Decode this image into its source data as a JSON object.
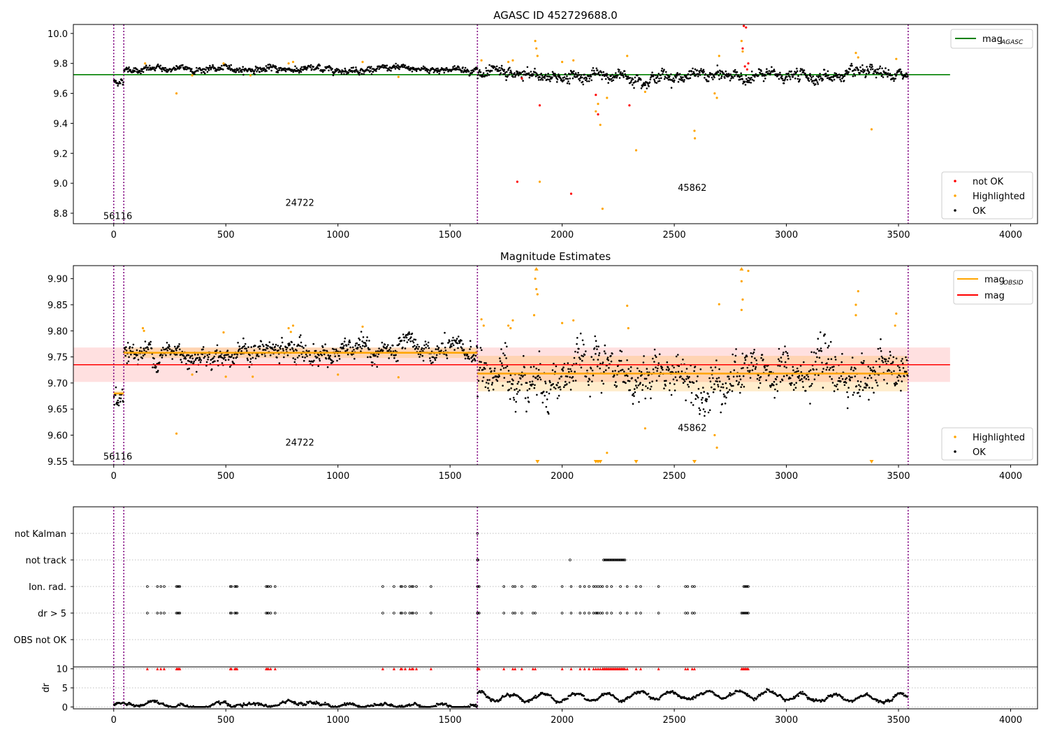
{
  "chart_data": [
    {
      "type": "scatter",
      "title": "AGASC ID 452729688.0",
      "xlabel": "",
      "ylabel": "",
      "xlim": [
        -180,
        4120
      ],
      "ylim": [
        8.73,
        10.06
      ],
      "xticks": [
        0,
        500,
        1000,
        1500,
        2000,
        2500,
        3000,
        3500,
        4000
      ],
      "yticks": [
        8.8,
        9.0,
        9.2,
        9.4,
        9.6,
        9.8,
        10.0
      ],
      "ytick_labels": [
        "8.8",
        "9.0",
        "9.2",
        "9.4",
        "9.6",
        "9.8",
        "10.0"
      ],
      "obs_boundaries": [
        0,
        45,
        1622,
        3543
      ],
      "obsid_labels": [
        {
          "text": "56116",
          "x": 18,
          "y": 8.76
        },
        {
          "text": "24722",
          "x": 830,
          "y": 8.85
        },
        {
          "text": "45862",
          "x": 2580,
          "y": 8.95
        }
      ],
      "agasc_mag": 9.725,
      "agasc_line_xrange": [
        -180,
        3730
      ],
      "segments": [
        {
          "start": 0,
          "end": 45,
          "level": 9.68,
          "spread": 0.012
        },
        {
          "start": 45,
          "end": 1622,
          "level": 9.762,
          "spread": 0.012
        },
        {
          "start": 1622,
          "end": 3543,
          "level": 9.715,
          "spread": 0.022
        }
      ],
      "highlighted_points": [
        [
          140,
          9.8
        ],
        [
          280,
          9.6
        ],
        [
          350,
          9.72
        ],
        [
          490,
          9.8
        ],
        [
          610,
          9.72
        ],
        [
          780,
          9.8
        ],
        [
          800,
          9.81
        ],
        [
          1110,
          9.81
        ],
        [
          1270,
          9.71
        ],
        [
          1640,
          9.82
        ],
        [
          1760,
          9.81
        ],
        [
          1780,
          9.82
        ],
        [
          1880,
          9.95
        ],
        [
          1885,
          9.9
        ],
        [
          1890,
          9.85
        ],
        [
          1900,
          9.01
        ],
        [
          2000,
          9.81
        ],
        [
          2050,
          9.82
        ],
        [
          2150,
          9.48
        ],
        [
          2160,
          9.53
        ],
        [
          2170,
          9.39
        ],
        [
          2180,
          8.83
        ],
        [
          2200,
          9.57
        ],
        [
          2290,
          9.85
        ],
        [
          2330,
          9.22
        ],
        [
          2370,
          9.61
        ],
        [
          2590,
          9.35
        ],
        [
          2592,
          9.3
        ],
        [
          2680,
          9.6
        ],
        [
          2690,
          9.57
        ],
        [
          2700,
          9.85
        ],
        [
          2800,
          9.95
        ],
        [
          2805,
          9.88
        ],
        [
          3310,
          9.87
        ],
        [
          3320,
          9.84
        ],
        [
          3380,
          9.36
        ],
        [
          3490,
          9.83
        ]
      ],
      "not_ok_points": [
        [
          1800,
          9.01
        ],
        [
          1820,
          9.7
        ],
        [
          1900,
          9.52
        ],
        [
          2040,
          8.93
        ],
        [
          2150,
          9.59
        ],
        [
          2160,
          9.46
        ],
        [
          2300,
          9.52
        ],
        [
          2810,
          10.05
        ],
        [
          2820,
          10.04
        ],
        [
          2805,
          9.9
        ],
        [
          2815,
          9.78
        ],
        [
          2825,
          9.76
        ],
        [
          2830,
          9.8
        ]
      ],
      "legends": [
        {
          "entries": [
            {
              "label_main": "mag",
              "label_sub": "AGASC",
              "color": "#008000",
              "style": "line"
            }
          ],
          "placement": "top-right"
        },
        {
          "entries": [
            {
              "label": "not OK",
              "color": "#ff0000"
            },
            {
              "label": "Highlighted",
              "color": "#ffa500"
            },
            {
              "label": "OK",
              "color": "#000000"
            }
          ],
          "placement": "lower-right"
        }
      ]
    },
    {
      "type": "scatter",
      "title": "Magnitude Estimates",
      "xlabel": "",
      "ylabel": "",
      "xlim": [
        -180,
        4120
      ],
      "ylim": [
        9.543,
        9.925
      ],
      "xticks": [
        0,
        500,
        1000,
        1500,
        2000,
        2500,
        3000,
        3500,
        4000
      ],
      "yticks": [
        9.55,
        9.6,
        9.65,
        9.7,
        9.75,
        9.8,
        9.85,
        9.9
      ],
      "ytick_labels": [
        "9.55",
        "9.60",
        "9.65",
        "9.70",
        "9.75",
        "9.80",
        "9.85",
        "9.90"
      ],
      "obs_boundaries": [
        0,
        45,
        1622,
        3543
      ],
      "obsid_labels": [
        {
          "text": "56116",
          "x": 18,
          "y": 9.553
        },
        {
          "text": "24722",
          "x": 830,
          "y": 9.58
        },
        {
          "text": "45862",
          "x": 2580,
          "y": 9.608
        }
      ],
      "overall_mag": 9.735,
      "overall_band": [
        9.702,
        9.768
      ],
      "overall_line_xrange": [
        -180,
        3730
      ],
      "obsid_mags": [
        {
          "start": 0,
          "end": 45,
          "mag": 9.68,
          "band": [
            9.675,
            9.685
          ]
        },
        {
          "start": 45,
          "end": 1622,
          "mag": 9.758,
          "band": [
            9.748,
            9.768
          ]
        },
        {
          "start": 1622,
          "end": 3543,
          "mag": 9.718,
          "band": [
            9.684,
            9.752
          ]
        }
      ],
      "segments": [
        {
          "start": 0,
          "end": 45,
          "level": 9.68,
          "spread": 0.012
        },
        {
          "start": 45,
          "end": 1622,
          "level": 9.758,
          "spread": 0.012
        },
        {
          "start": 1622,
          "end": 3543,
          "level": 9.716,
          "spread": 0.024
        }
      ],
      "highlighted_points": [
        [
          130,
          9.805
        ],
        [
          135,
          9.8
        ],
        [
          280,
          9.603
        ],
        [
          350,
          9.716
        ],
        [
          490,
          9.797
        ],
        [
          500,
          9.712
        ],
        [
          620,
          9.712
        ],
        [
          780,
          9.805
        ],
        [
          800,
          9.81
        ],
        [
          790,
          9.798
        ],
        [
          1000,
          9.716
        ],
        [
          1110,
          9.808
        ],
        [
          1270,
          9.711
        ],
        [
          1640,
          9.822
        ],
        [
          1650,
          9.81
        ],
        [
          1760,
          9.81
        ],
        [
          1770,
          9.805
        ],
        [
          1780,
          9.82
        ],
        [
          1880,
          9.9
        ],
        [
          1885,
          9.88
        ],
        [
          1890,
          9.87
        ],
        [
          1875,
          9.83
        ],
        [
          2000,
          9.815
        ],
        [
          2050,
          9.82
        ],
        [
          2150,
          9.55
        ],
        [
          2160,
          9.55
        ],
        [
          2170,
          9.55
        ],
        [
          2200,
          9.566
        ],
        [
          2290,
          9.848
        ],
        [
          2295,
          9.805
        ],
        [
          2370,
          9.613
        ],
        [
          2680,
          9.6
        ],
        [
          2690,
          9.576
        ],
        [
          2700,
          9.851
        ],
        [
          2800,
          9.895
        ],
        [
          2805,
          9.86
        ],
        [
          2800,
          9.84
        ],
        [
          2830,
          9.915
        ],
        [
          3310,
          9.85
        ],
        [
          3320,
          9.876
        ],
        [
          3310,
          9.83
        ],
        [
          3490,
          9.833
        ],
        [
          3485,
          9.81
        ]
      ],
      "clipped_low_points": [
        1890,
        2150,
        2160,
        2170,
        2330,
        2590,
        3380
      ],
      "clipped_high_points": [
        1885,
        2800
      ],
      "legends": [
        {
          "entries": [
            {
              "label_main": "mag",
              "label_sub": "OBSID",
              "color": "#ffa500",
              "style": "line"
            },
            {
              "label": "mag",
              "color": "#ff0000",
              "style": "line"
            }
          ],
          "placement": "top-right"
        },
        {
          "entries": [
            {
              "label": "Highlighted",
              "color": "#ffa500"
            },
            {
              "label": "OK",
              "color": "#000000"
            }
          ],
          "placement": "lower-right"
        }
      ]
    },
    {
      "type": "scatter",
      "title": "",
      "xlabel": "",
      "ylabel": "",
      "xlim": [
        -180,
        4120
      ],
      "category_labels": [
        "OBS not OK",
        "dr > 5",
        "Ion. rad.",
        "not track",
        "not Kalman"
      ],
      "obs_boundaries": [
        0,
        45,
        1622,
        3543
      ],
      "flags": {
        "not_kalman": [
          1622
        ],
        "not_track": [
          1622,
          1625,
          2035,
          2185,
          2190,
          2195,
          2200,
          2205,
          2210,
          2215,
          2220,
          2225,
          2230,
          2235,
          2240,
          2245,
          2250,
          2255,
          2260,
          2265,
          2270,
          2275,
          2280
        ],
        "ion_rad": [
          150,
          195,
          210,
          225,
          280,
          285,
          290,
          295,
          520,
          525,
          540,
          545,
          550,
          680,
          685,
          690,
          700,
          720,
          1200,
          1250,
          1280,
          1285,
          1300,
          1320,
          1330,
          1335,
          1350,
          1415,
          1622,
          1625,
          1630,
          1740,
          1780,
          1790,
          1820,
          1870,
          1880,
          2000,
          2040,
          2080,
          2100,
          2120,
          2140,
          2150,
          2160,
          2170,
          2180,
          2200,
          2220,
          2260,
          2290,
          2330,
          2350,
          2430,
          2550,
          2560,
          2580,
          2590,
          2810,
          2815,
          2820,
          2825,
          2830
        ],
        "dr_gt_5": [
          150,
          195,
          210,
          225,
          280,
          285,
          290,
          295,
          520,
          525,
          540,
          545,
          550,
          680,
          685,
          690,
          700,
          720,
          1200,
          1250,
          1280,
          1285,
          1300,
          1320,
          1330,
          1335,
          1350,
          1415,
          1622,
          1625,
          1630,
          1740,
          1780,
          1790,
          1820,
          1870,
          1880,
          2000,
          2040,
          2080,
          2100,
          2120,
          2140,
          2150,
          2155,
          2160,
          2170,
          2180,
          2200,
          2220,
          2260,
          2290,
          2330,
          2350,
          2430,
          2550,
          2560,
          2580,
          2590,
          2800,
          2805,
          2810,
          2815,
          2820,
          2825,
          2830
        ]
      }
    },
    {
      "type": "scatter",
      "title": "",
      "xlabel": "",
      "ylabel": "dr",
      "xlim": [
        -180,
        4120
      ],
      "ylim": [
        -0.5,
        10.5
      ],
      "xticks": [
        0,
        500,
        1000,
        1500,
        2000,
        2500,
        3000,
        3500,
        4000
      ],
      "yticks": [
        0,
        5,
        10
      ],
      "ytick_labels": [
        "0",
        "5",
        "10"
      ],
      "obs_boundaries": [
        0,
        45,
        1622,
        3543
      ],
      "clip_value": 10,
      "segments": [
        {
          "start": 0,
          "end": 1622,
          "base": 0.5,
          "amp": 0.4
        },
        {
          "start": 1622,
          "end": 3543,
          "base": 2.6,
          "amp": 1.0
        }
      ],
      "red_markers_at_clip": [
        150,
        195,
        210,
        225,
        280,
        285,
        290,
        295,
        520,
        525,
        540,
        545,
        550,
        680,
        685,
        690,
        700,
        720,
        1200,
        1250,
        1280,
        1285,
        1300,
        1320,
        1330,
        1335,
        1350,
        1415,
        1622,
        1625,
        1630,
        1740,
        1780,
        1790,
        1820,
        1870,
        1880,
        2000,
        2040,
        2080,
        2100,
        2120,
        2140,
        2150,
        2160,
        2170,
        2180,
        2185,
        2190,
        2195,
        2200,
        2205,
        2210,
        2215,
        2220,
        2225,
        2230,
        2235,
        2240,
        2245,
        2250,
        2255,
        2260,
        2265,
        2270,
        2275,
        2280,
        2290,
        2330,
        2350,
        2430,
        2550,
        2560,
        2580,
        2590,
        2800,
        2805,
        2810,
        2815,
        2820,
        2825,
        2830
      ]
    }
  ]
}
